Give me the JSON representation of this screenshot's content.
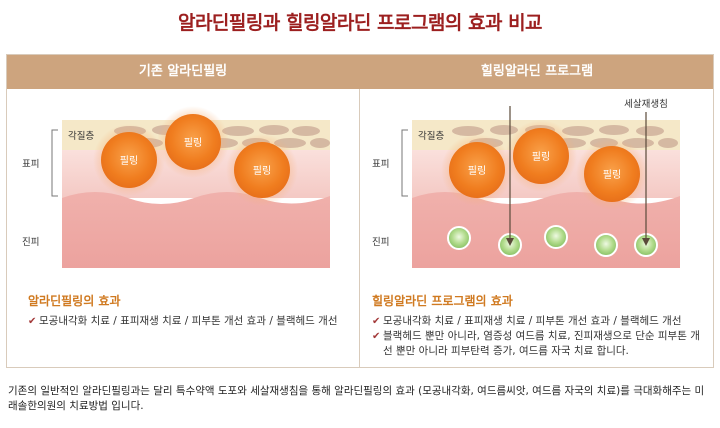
{
  "title": "알라딘필링과 힐링알라딘 프로그램의 효과 비교",
  "columns": {
    "left": {
      "header": "기존 알라딘필링"
    },
    "right": {
      "header": "힐링알라딘 프로그램"
    }
  },
  "layers": {
    "stratum_corneum": "각질층",
    "epidermis": "표피",
    "dermis": "진피"
  },
  "peel_label": "필링",
  "cell_regen_needle_label": "세살재생침",
  "left_effects": {
    "heading": "알라딘필링의 효과",
    "items": [
      "모공내각화 치료 / 표피재생 치료 / 피부톤 개선 효과 / 블랙헤드 개선"
    ]
  },
  "right_effects": {
    "heading": "힐링알라딘 프로그램의 효과",
    "items": [
      "모공내각화 치료 / 표피재생 치료 / 피부톤 개선 효과 / 블랙헤드 개선",
      "블랙헤드 뿐만 아니라, 염증성 여드름 치료, 진피재생으로 단순 피부톤 개선 뿐만 아니라 피부탄력 증가, 여드름 자국 치료 합니다."
    ]
  },
  "check_mark": "✔",
  "footer": "기존의 일반적인 알라딘필링과는 달리 특수약액 도포와 세살재생침을 통해 알라딘필링의 효과 (모공내각화, 여드름씨앗, 여드름 자국의 치료)를 극대화해주는 미래솔한의원의 치료방법 입니다.",
  "colors": {
    "title": "#9c1f1f",
    "header": "#cda47e",
    "stratum": "#f5e8c8",
    "scale": "#d5b9a2",
    "epidermis": "#f6d3cf",
    "dermis": "#eeaaa6",
    "peel": "#f07d1f",
    "needle_orb": "#a7d683",
    "accent_heading": "#d07a21"
  }
}
